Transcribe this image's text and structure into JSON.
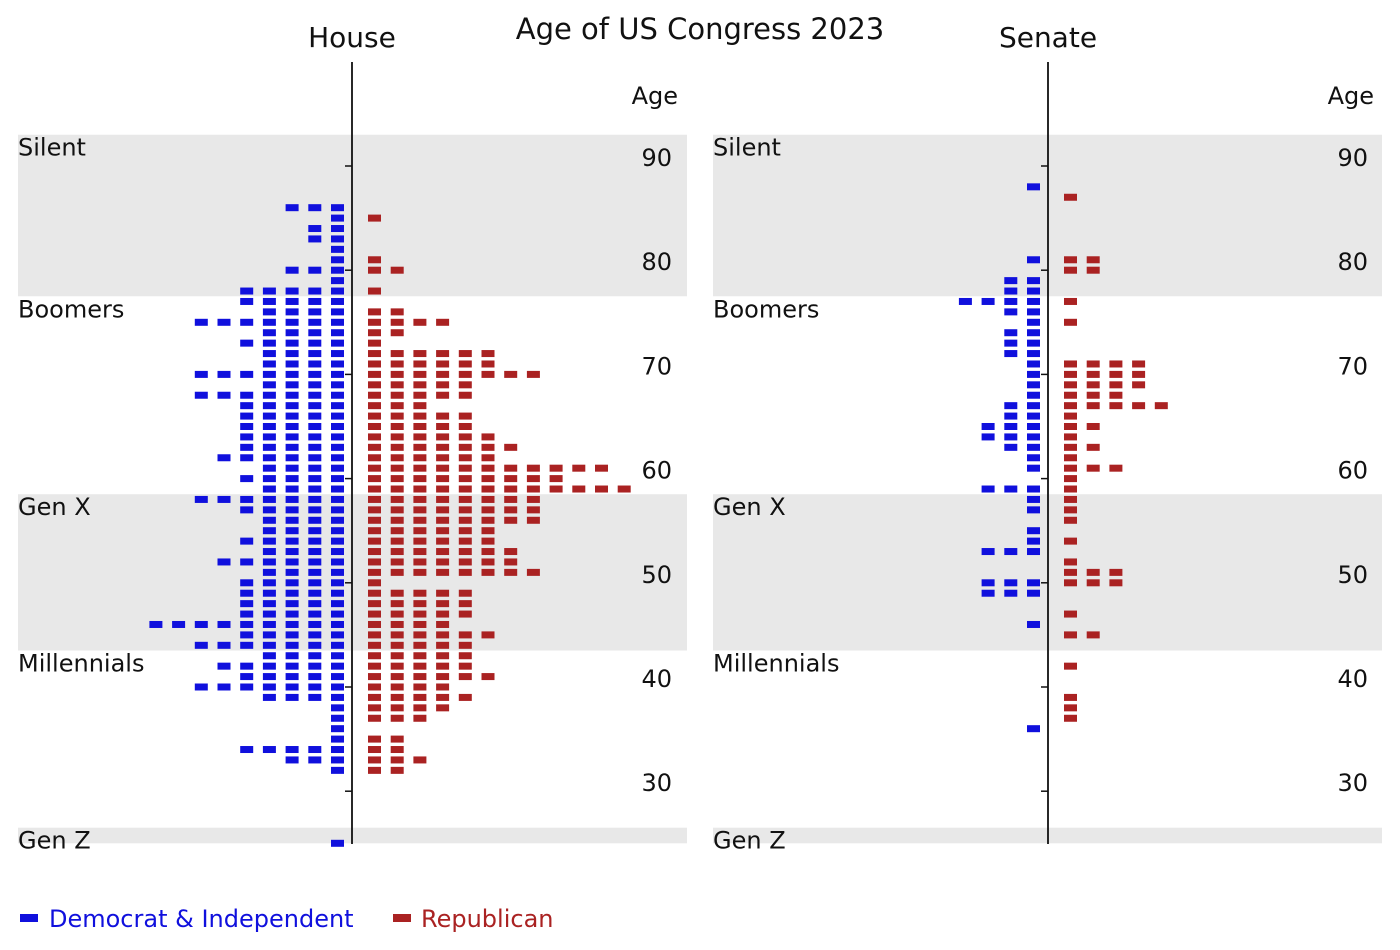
{
  "chart_data": {
    "type": "pyramid",
    "title": "Age of US Congress 2023",
    "axis_label": "Age",
    "y_ticks": [
      30,
      40,
      50,
      60,
      70,
      80,
      90
    ],
    "ylim": [
      25,
      93
    ],
    "colors": {
      "democrat": "#1010dd",
      "republican": "#aa2222",
      "band": "#e8e8e8"
    },
    "generations": [
      {
        "label": "Silent",
        "from": 77.5,
        "to": 93,
        "shaded": true
      },
      {
        "label": "Boomers",
        "from": 58.5,
        "to": 77.5,
        "shaded": false
      },
      {
        "label": "Gen X",
        "from": 43.5,
        "to": 58.5,
        "shaded": true
      },
      {
        "label": "Millennials",
        "from": 26.5,
        "to": 43.5,
        "shaded": false
      },
      {
        "label": "Gen Z",
        "from": 25,
        "to": 26.5,
        "shaded": true
      }
    ],
    "legend": [
      {
        "key": "democrat",
        "label": "Democrat & Independent"
      },
      {
        "key": "republican",
        "label": "Republican"
      }
    ],
    "panels": [
      {
        "title": "House",
        "ages": [
          89,
          88,
          87,
          86,
          85,
          84,
          83,
          82,
          81,
          80,
          79,
          78,
          77,
          76,
          75,
          74,
          73,
          72,
          71,
          70,
          69,
          68,
          67,
          66,
          65,
          64,
          63,
          62,
          61,
          60,
          59,
          58,
          57,
          56,
          55,
          54,
          53,
          52,
          51,
          50,
          49,
          48,
          47,
          46,
          45,
          44,
          43,
          42,
          41,
          40,
          39,
          38,
          37,
          36,
          35,
          34,
          33,
          32,
          31,
          30,
          29,
          28,
          27,
          26,
          25
        ],
        "democrat": [
          0,
          0,
          0,
          3,
          1,
          2,
          2,
          1,
          1,
          3,
          1,
          5,
          5,
          4,
          7,
          4,
          5,
          4,
          4,
          7,
          4,
          7,
          5,
          5,
          5,
          5,
          5,
          6,
          4,
          5,
          4,
          7,
          5,
          4,
          4,
          5,
          4,
          6,
          4,
          5,
          5,
          5,
          5,
          9,
          5,
          7,
          4,
          6,
          5,
          7,
          4,
          1,
          1,
          1,
          1,
          5,
          3,
          1,
          0,
          0,
          0,
          0,
          0,
          0,
          1
        ],
        "republican": [
          0,
          0,
          0,
          0,
          1,
          0,
          0,
          0,
          1,
          2,
          0,
          1,
          0,
          2,
          4,
          2,
          1,
          6,
          6,
          8,
          5,
          5,
          3,
          5,
          5,
          6,
          7,
          6,
          11,
          9,
          12,
          8,
          8,
          8,
          6,
          6,
          7,
          7,
          8,
          1,
          5,
          5,
          5,
          4,
          6,
          5,
          5,
          5,
          6,
          4,
          5,
          4,
          3,
          0,
          2,
          2,
          3,
          2,
          0,
          0,
          0,
          0,
          0,
          0,
          0
        ]
      },
      {
        "title": "Senate",
        "ages": [
          89,
          88,
          87,
          86,
          85,
          84,
          83,
          82,
          81,
          80,
          79,
          78,
          77,
          76,
          75,
          74,
          73,
          72,
          71,
          70,
          69,
          68,
          67,
          66,
          65,
          64,
          63,
          62,
          61,
          60,
          59,
          58,
          57,
          56,
          55,
          54,
          53,
          52,
          51,
          50,
          49,
          48,
          47,
          46,
          45,
          44,
          43,
          42,
          41,
          40,
          39,
          38,
          37,
          36,
          35,
          34,
          33,
          32,
          31,
          30,
          29,
          28,
          27,
          26,
          25
        ],
        "democrat": [
          0,
          1,
          0,
          0,
          0,
          0,
          0,
          0,
          1,
          0,
          2,
          2,
          4,
          2,
          1,
          2,
          2,
          2,
          1,
          1,
          1,
          1,
          2,
          2,
          3,
          3,
          2,
          1,
          1,
          0,
          3,
          1,
          1,
          0,
          1,
          1,
          3,
          0,
          0,
          3,
          3,
          0,
          0,
          1,
          0,
          0,
          0,
          0,
          0,
          0,
          0,
          0,
          0,
          1,
          0,
          0,
          0,
          0,
          0,
          0,
          0,
          0,
          0,
          0,
          0
        ],
        "republican": [
          0,
          0,
          1,
          0,
          0,
          0,
          0,
          0,
          2,
          2,
          0,
          0,
          1,
          0,
          1,
          0,
          0,
          0,
          4,
          4,
          4,
          3,
          5,
          1,
          2,
          1,
          2,
          1,
          3,
          1,
          1,
          1,
          1,
          1,
          0,
          1,
          0,
          1,
          3,
          3,
          0,
          0,
          1,
          0,
          2,
          0,
          0,
          1,
          0,
          0,
          1,
          1,
          1,
          0,
          0,
          0,
          0,
          0,
          0,
          0,
          0,
          0,
          0,
          0,
          0
        ]
      }
    ]
  }
}
